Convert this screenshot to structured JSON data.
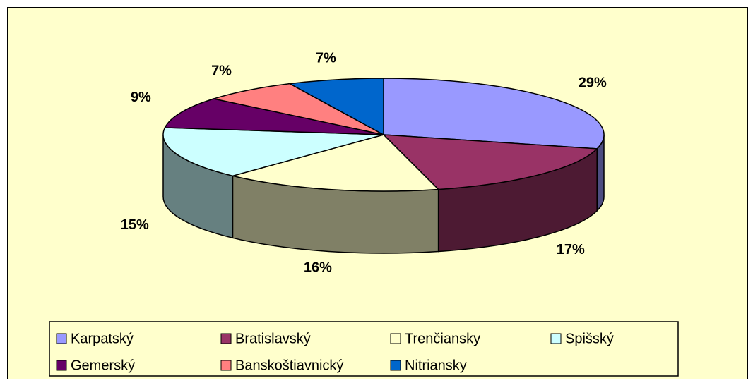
{
  "chart_data": {
    "type": "pie",
    "categories": [
      "Karpatský",
      "Bratislavský",
      "Trenčiansky",
      "Spišský",
      "Gemerský",
      "Banskoštiavnický",
      "Nitriansky"
    ],
    "values": [
      29,
      17,
      16,
      15,
      9,
      7,
      7
    ],
    "value_labels": [
      "29%",
      "17%",
      "16%",
      "15%",
      "9%",
      "7%",
      "7%"
    ],
    "colors": [
      "#9999ff",
      "#993366",
      "#ffffcc",
      "#ccffff",
      "#660066",
      "#ff8080",
      "#0066cc"
    ],
    "legend": "bottom"
  }
}
